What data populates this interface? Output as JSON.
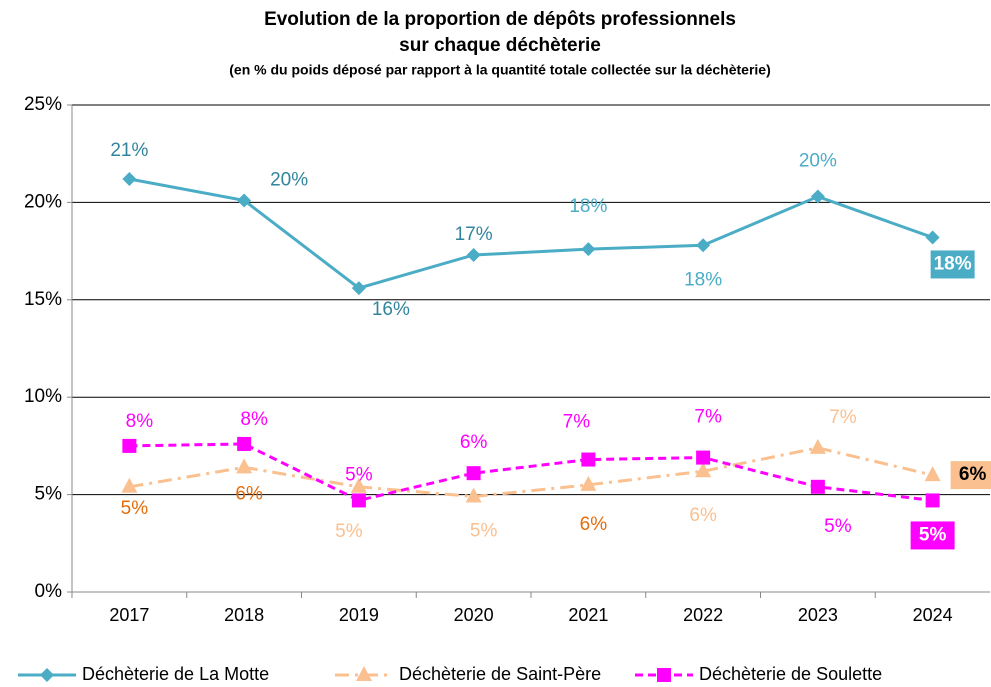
{
  "chart_data": {
    "type": "line",
    "title": [
      "Evolution de la proportion de dépôts professionnels",
      "sur chaque déchèterie"
    ],
    "subtitle": "(en % du poids déposé par rapport à la quantité totale collectée sur la déchèterie)",
    "categories": [
      "2017",
      "2018",
      "2019",
      "2020",
      "2021",
      "2022",
      "2023",
      "2024"
    ],
    "ylim": [
      0,
      25
    ],
    "yticks": [
      {
        "value": 0,
        "label": "0%"
      },
      {
        "value": 5,
        "label": "5%"
      },
      {
        "value": 10,
        "label": "10%"
      },
      {
        "value": 15,
        "label": "15%"
      },
      {
        "value": 20,
        "label": "20%"
      },
      {
        "value": 25,
        "label": "25%"
      }
    ],
    "grid": true,
    "legend": "bottom",
    "series": [
      {
        "name": "Déchèterie de La Motte",
        "color": "#4bacc6",
        "marker": "diamond",
        "values": [
          21.2,
          20.1,
          15.6,
          17.3,
          17.6,
          17.8,
          20.3,
          18.2
        ],
        "value_labels": [
          "21%",
          "20%",
          "16%",
          "17%",
          "18%",
          "18%",
          "20%",
          "18%"
        ]
      },
      {
        "name": "Déchèterie de Saint-Père",
        "color": "#fac090",
        "marker": "triangle",
        "values": [
          5.4,
          6.4,
          5.4,
          4.9,
          5.5,
          6.2,
          7.4,
          6.0
        ],
        "value_labels": [
          "5%",
          "6%",
          "5%",
          "5%",
          "6%",
          "6%",
          "7%",
          "6%"
        ]
      },
      {
        "name": "Déchèterie de Soulette",
        "color": "#ff00ff",
        "marker": "square",
        "values": [
          7.5,
          7.6,
          4.7,
          6.1,
          6.8,
          6.9,
          5.4,
          4.7
        ],
        "value_labels": [
          "8%",
          "8%",
          "5%",
          "6%",
          "7%",
          "7%",
          "5%",
          "5%"
        ]
      }
    ]
  }
}
